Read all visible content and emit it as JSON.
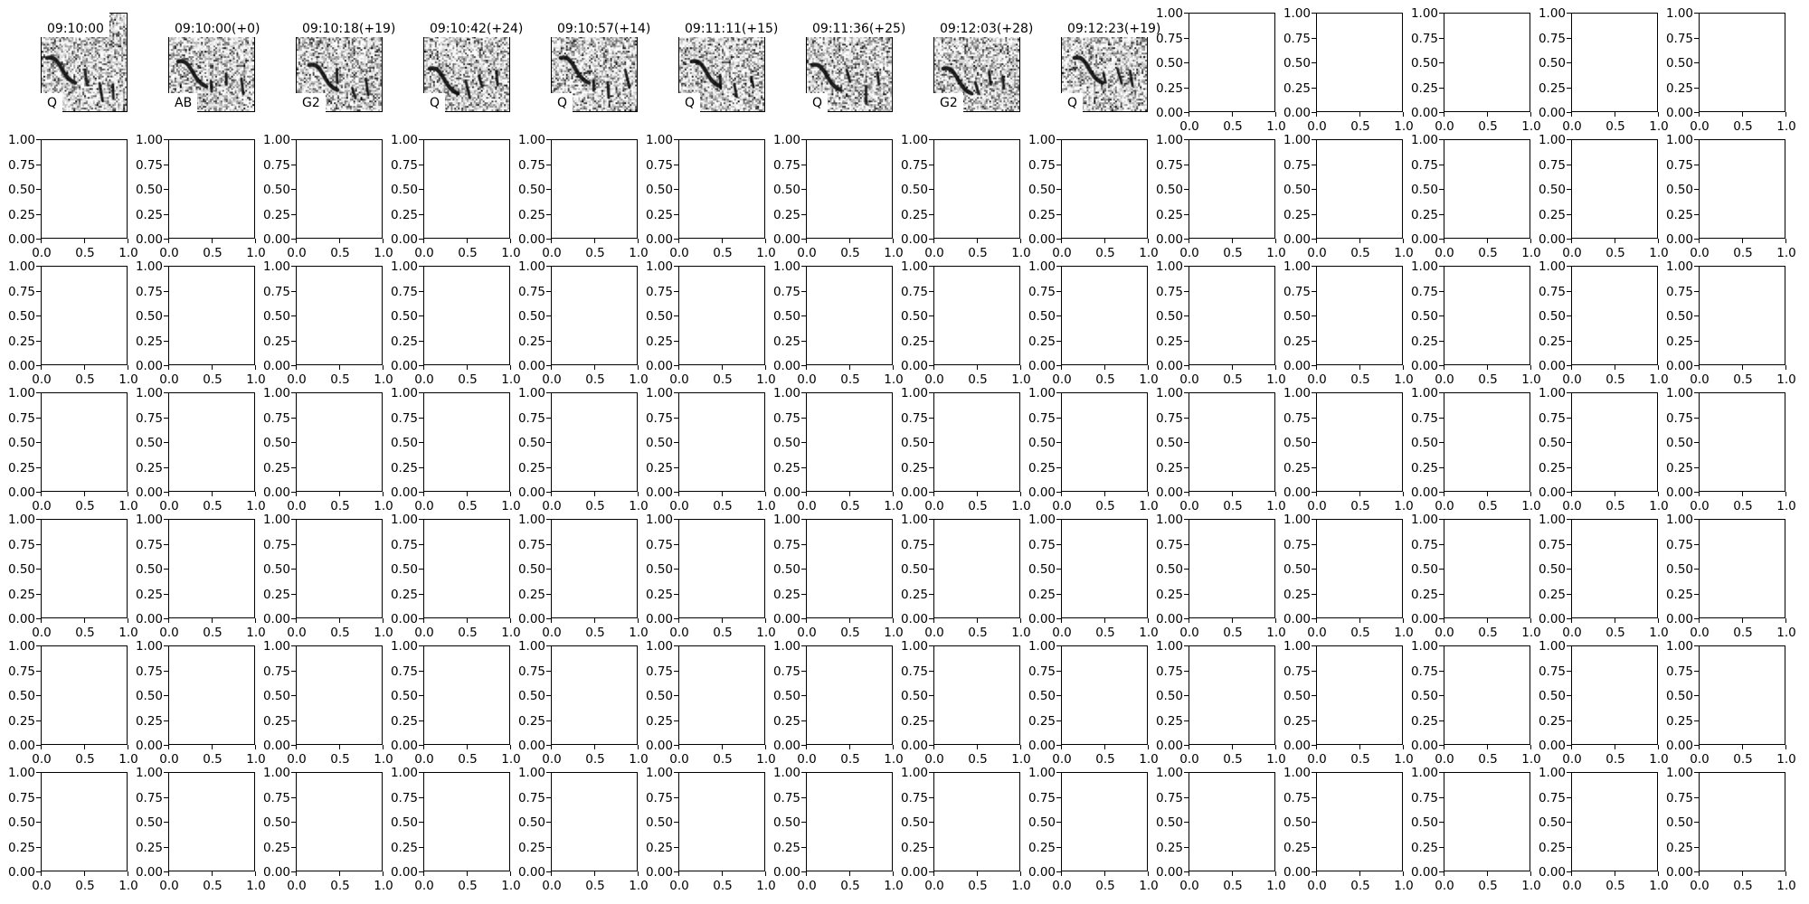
{
  "figure": {
    "rows": 7,
    "cols": 14
  },
  "axes": {
    "yticks": [
      "0.00",
      "0.25",
      "0.50",
      "0.75",
      "1.00"
    ],
    "xticks": [
      "0.0",
      "0.5",
      "1.0"
    ],
    "xlim": [
      0,
      1
    ],
    "ylim": [
      0,
      1
    ]
  },
  "chart_data": {
    "type": "heatmap",
    "description_kind": "grid of spectrogram image panels followed by empty axes",
    "image_panels": [
      {
        "title": "09:10:00",
        "label": "Q"
      },
      {
        "title": "09:10:00(+0)",
        "label": "AB"
      },
      {
        "title": "09:10:18(+19)",
        "label": "G2"
      },
      {
        "title": "09:10:42(+24)",
        "label": "Q"
      },
      {
        "title": "09:10:57(+14)",
        "label": "Q"
      },
      {
        "title": "09:11:11(+15)",
        "label": "Q"
      },
      {
        "title": "09:11:36(+25)",
        "label": "Q"
      },
      {
        "title": "09:12:03(+28)",
        "label": "G2"
      },
      {
        "title": "09:12:23(+19)",
        "label": "Q"
      }
    ],
    "colormap": "gray_r",
    "empty_axes_xlim": [
      0,
      1
    ],
    "empty_axes_ylim": [
      0,
      1
    ]
  }
}
